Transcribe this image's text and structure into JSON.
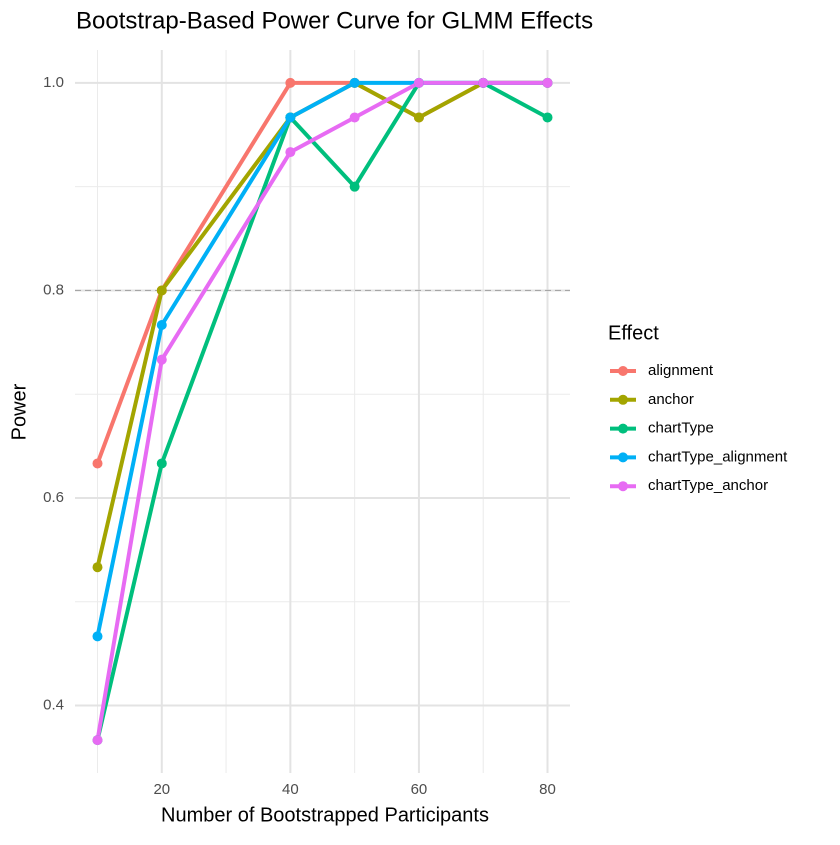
{
  "chart_data": {
    "type": "line",
    "title": "Bootstrap-Based Power Curve for GLMM Effects",
    "x_label": "Number of Bootstrapped Participants",
    "y_label": "Power",
    "legend_title": "Effect",
    "legend_position": "right",
    "x": [
      10,
      20,
      40,
      50,
      60,
      70,
      80
    ],
    "series": [
      {
        "name": "alignment",
        "color": "#F8766D",
        "values": [
          0.6333,
          0.8,
          1.0,
          1.0,
          0.9667,
          1.0,
          1.0
        ]
      },
      {
        "name": "anchor",
        "color": "#A3A500",
        "values": [
          0.5333,
          0.8,
          0.9667,
          1.0,
          0.9667,
          1.0,
          1.0
        ]
      },
      {
        "name": "chartType",
        "color": "#00BF7D",
        "values": [
          0.3667,
          0.6333,
          0.9667,
          0.9,
          1.0,
          1.0,
          0.9667
        ]
      },
      {
        "name": "chartType_alignment",
        "color": "#00B0F6",
        "values": [
          0.4667,
          0.7667,
          0.9667,
          1.0,
          1.0,
          1.0,
          1.0
        ]
      },
      {
        "name": "chartType_anchor",
        "color": "#E76BF3",
        "values": [
          0.3667,
          0.7333,
          0.9333,
          0.9667,
          1.0,
          1.0,
          1.0
        ]
      }
    ],
    "xlim": [
      6.5,
      83.5
    ],
    "ylim": [
      0.335,
      1.0317
    ],
    "xticks": [
      20,
      40,
      60,
      80
    ],
    "yticks": [
      {
        "value": 0.4,
        "label": "0.4"
      },
      {
        "value": 0.6,
        "label": "0.6"
      },
      {
        "value": 0.8,
        "label": "0.8"
      },
      {
        "value": 1.0,
        "label": "1.0"
      }
    ],
    "x_minor_grid": [
      10,
      30,
      50,
      70
    ],
    "y_minor_grid": [
      0.5,
      0.7,
      0.9
    ],
    "reference_line": 0.8,
    "grid": true
  }
}
